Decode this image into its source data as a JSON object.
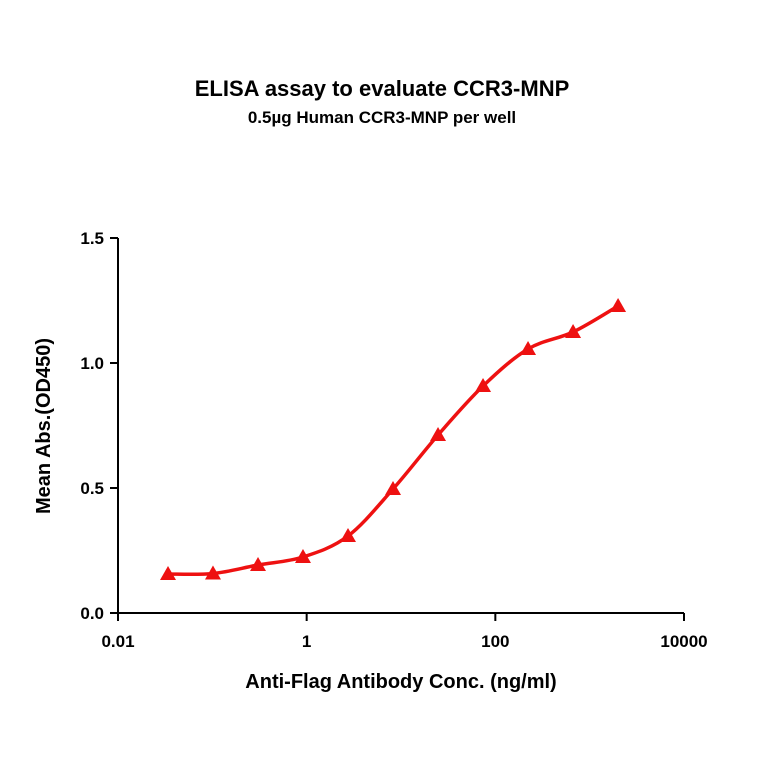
{
  "chart_data": {
    "type": "scatter",
    "title": "ELISA assay to evaluate CCR3-MNP",
    "subtitle": "0.5µg Human CCR3-MNP per well",
    "xlabel": "Anti-Flag Antibody Conc. (ng/ml)",
    "ylabel": "Mean Abs.(OD450)",
    "xscale": "log",
    "xlim": [
      0.01,
      10000
    ],
    "ylim": [
      0,
      1.5
    ],
    "xticks": [
      "0.01",
      "1",
      "100",
      "10000"
    ],
    "xtick_values": [
      0.01,
      1,
      100,
      10000
    ],
    "yticks": [
      "0.0",
      "0.5",
      "1.0",
      "1.5"
    ],
    "ytick_values": [
      0,
      0.5,
      1.0,
      1.5
    ],
    "grid": false,
    "marker": "triangle",
    "fit_line": "sigmoidal curve",
    "color": "#ee1111",
    "series": [
      {
        "x": [
          0.0339,
          0.1016,
          0.305,
          0.914,
          2.743,
          8.23,
          24.69,
          74.07,
          222.2,
          666.7,
          2000
        ],
        "y": [
          0.156,
          0.158,
          0.192,
          0.224,
          0.308,
          0.496,
          0.712,
          0.908,
          1.056,
          1.124,
          1.228
        ]
      }
    ]
  }
}
